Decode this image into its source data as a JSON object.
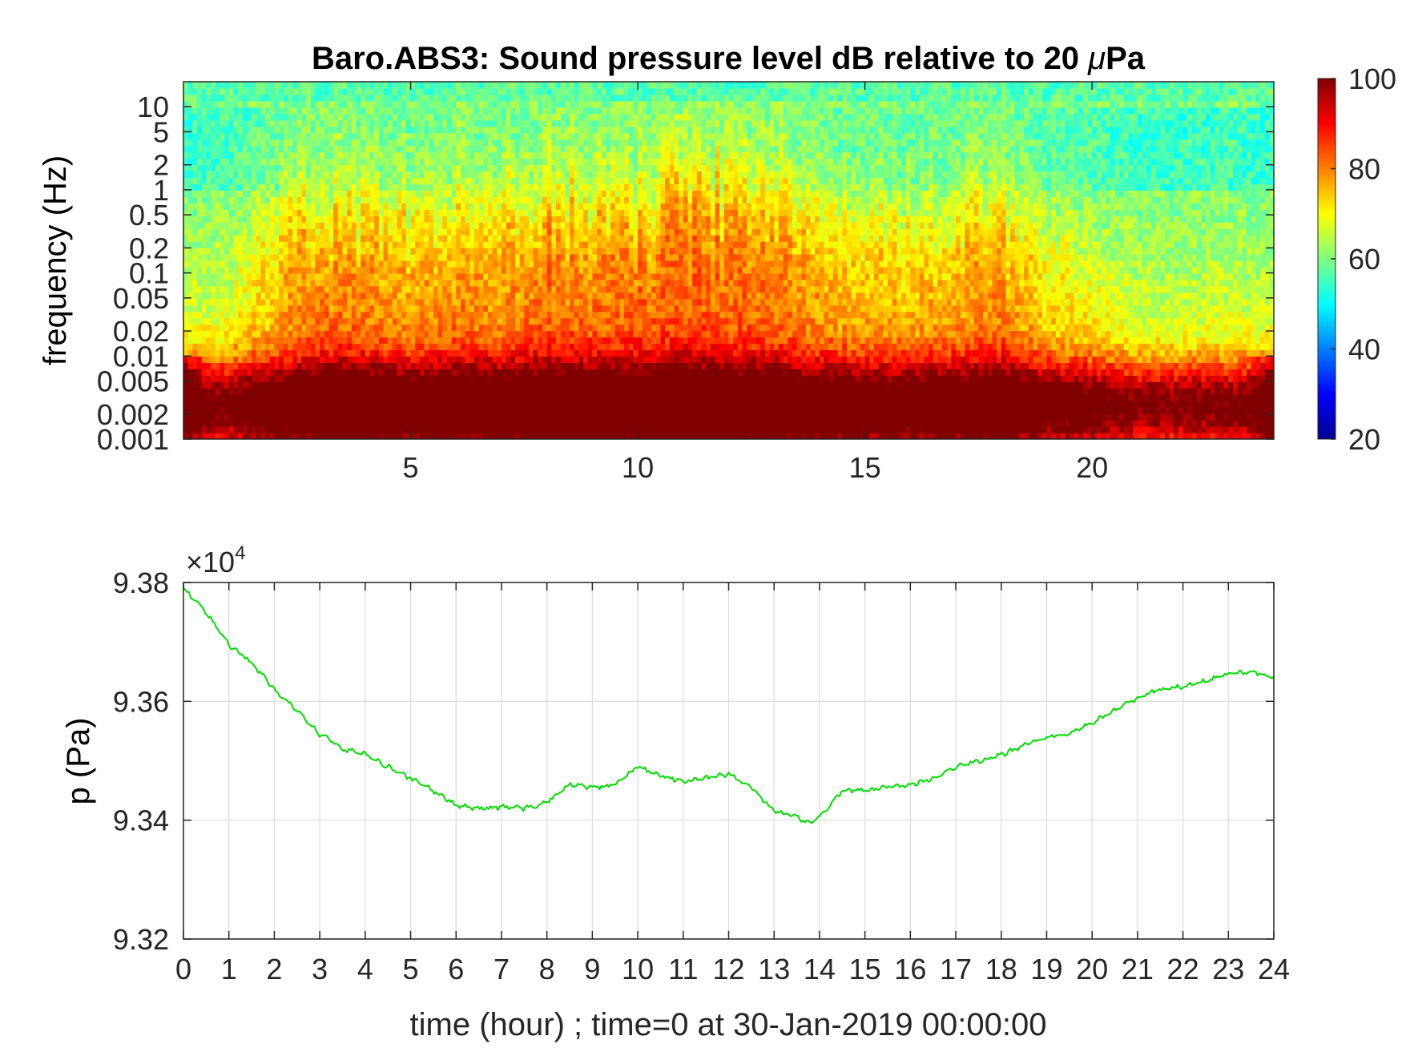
{
  "chart_data": [
    {
      "type": "heatmap",
      "title": "Baro.ABS3: Sound pressure level dB relative to 20 μPa",
      "title_parts": [
        "Baro.ABS3: Sound pressure level dB relative to 20 ",
        "μ",
        "Pa"
      ],
      "xlabel": "",
      "ylabel": "frequency (Hz)",
      "xlim": [
        0,
        24
      ],
      "ylim": [
        0.001,
        20
      ],
      "yscale": "log",
      "xticks": [
        5,
        10,
        15,
        20
      ],
      "xtick_labels": [
        "5",
        "10",
        "15",
        "20"
      ],
      "yticks": [
        0.001,
        0.002,
        0.005,
        0.01,
        0.02,
        0.05,
        0.1,
        0.2,
        0.5,
        1,
        2,
        5,
        10
      ],
      "ytick_labels": [
        "0.001",
        "0.002",
        "0.005",
        "0.01",
        "0.02",
        "0.05",
        "0.1",
        "0.2",
        "0.5",
        "1",
        "2",
        "5",
        "10"
      ],
      "colorbar": {
        "range": [
          20,
          100
        ],
        "ticks": [
          20,
          40,
          60,
          80,
          100
        ],
        "tick_labels": [
          "20",
          "40",
          "60",
          "80",
          "100"
        ],
        "colormap": "jet"
      },
      "intensity_profile": {
        "x": [
          0,
          1,
          2,
          3,
          4,
          5,
          6,
          7,
          8,
          9,
          10,
          11,
          12,
          13,
          14,
          15,
          16,
          17,
          18,
          19,
          20,
          21,
          22,
          23,
          24
        ],
        "relative_level": [
          0.3,
          0.4,
          0.7,
          0.95,
          0.9,
          0.8,
          0.9,
          0.85,
          1.0,
          0.95,
          1.0,
          1.05,
          1.0,
          0.95,
          0.8,
          0.75,
          0.7,
          0.8,
          0.9,
          0.6,
          0.5,
          0.3,
          0.3,
          0.35,
          0.3
        ]
      }
    },
    {
      "type": "line",
      "title": "",
      "xlabel": "time (hour) ; time=0 at 30-Jan-2019 00:00:00",
      "ylabel": "p (Pa)",
      "xlim": [
        0,
        24
      ],
      "ylim": [
        93200,
        93800
      ],
      "xticks": [
        0,
        1,
        2,
        3,
        4,
        5,
        6,
        7,
        8,
        9,
        10,
        11,
        12,
        13,
        14,
        15,
        16,
        17,
        18,
        19,
        20,
        21,
        22,
        23,
        24
      ],
      "xtick_labels": [
        "0",
        "1",
        "2",
        "3",
        "4",
        "5",
        "6",
        "7",
        "8",
        "9",
        "10",
        "11",
        "12",
        "13",
        "14",
        "15",
        "16",
        "17",
        "18",
        "19",
        "20",
        "21",
        "22",
        "23",
        "24"
      ],
      "yticks": [
        93200,
        93400,
        93600,
        93800
      ],
      "ytick_labels": [
        "9.32",
        "9.34",
        "9.36",
        "9.38"
      ],
      "exponent_label": "×10",
      "exponent_power": "4",
      "grid": true,
      "line_color": "#00dd00",
      "series": [
        {
          "x": [
            0,
            0.5,
            1,
            1.5,
            2,
            2.5,
            3,
            3.5,
            4,
            4.5,
            5,
            5.5,
            6,
            6.5,
            7,
            7.5,
            8,
            8.5,
            9,
            9.5,
            10,
            10.5,
            11,
            11.5,
            12,
            12.5,
            13,
            13.5,
            13.8,
            14,
            14.5,
            15,
            15.5,
            16,
            16.5,
            17,
            17.5,
            18,
            18.5,
            19,
            19.5,
            20,
            20.5,
            21,
            21.5,
            22,
            22.5,
            23,
            23.5,
            24
          ],
          "values": [
            93790,
            93750,
            93695,
            93665,
            93620,
            93585,
            93545,
            93520,
            93510,
            93490,
            93470,
            93450,
            93425,
            93420,
            93422,
            93420,
            93430,
            93460,
            93455,
            93460,
            93490,
            93475,
            93465,
            93470,
            93478,
            93455,
            93415,
            93405,
            93395,
            93405,
            93450,
            93450,
            93455,
            93460,
            93470,
            93490,
            93500,
            93510,
            93525,
            93540,
            93545,
            93565,
            93585,
            93605,
            93620,
            93625,
            93635,
            93645,
            93650,
            93640
          ]
        }
      ]
    }
  ]
}
